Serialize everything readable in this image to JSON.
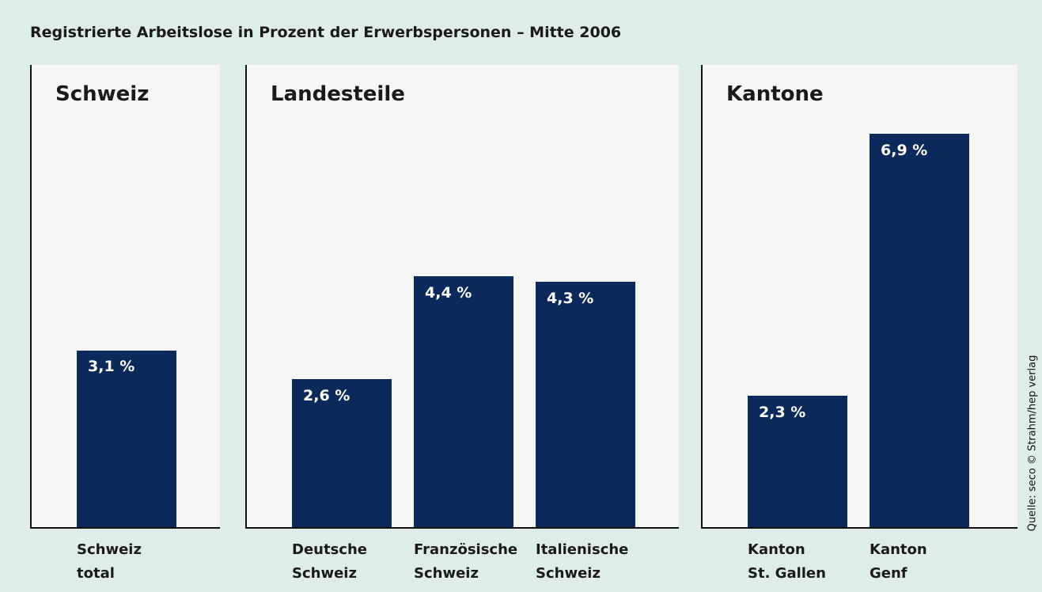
{
  "title": "Registrierte Arbeitslose in Prozent der Erwerbspersonen – Mitte 2006",
  "source": "Quelle: seco © Strahm/hep verlag",
  "chart_data": [
    {
      "type": "bar",
      "title": "Schweiz",
      "categories": [
        "Schweiz\ntotal"
      ],
      "values": [
        3.1
      ],
      "value_labels": [
        "3,1 %"
      ],
      "color": "#0b2a5b",
      "ylim": [
        0,
        8.1
      ]
    },
    {
      "type": "bar",
      "title": "Landesteile",
      "categories": [
        "Deutsche\nSchweiz",
        "Französische\nSchweiz",
        "Italienische\nSchweiz"
      ],
      "values": [
        2.6,
        4.4,
        4.3
      ],
      "value_labels": [
        "2,6 %",
        "4,4 %",
        "4,3 %"
      ],
      "color": "#0b2a5b",
      "ylim": [
        0,
        8.1
      ]
    },
    {
      "type": "bar",
      "title": "Kantone",
      "categories": [
        "Kanton\nSt. Gallen",
        "Kanton\nGenf"
      ],
      "values": [
        2.3,
        6.9
      ],
      "value_labels": [
        "2,3 %",
        "6,9 %"
      ],
      "color": "#0b2a5b",
      "ylim": [
        0,
        8.1
      ]
    }
  ]
}
